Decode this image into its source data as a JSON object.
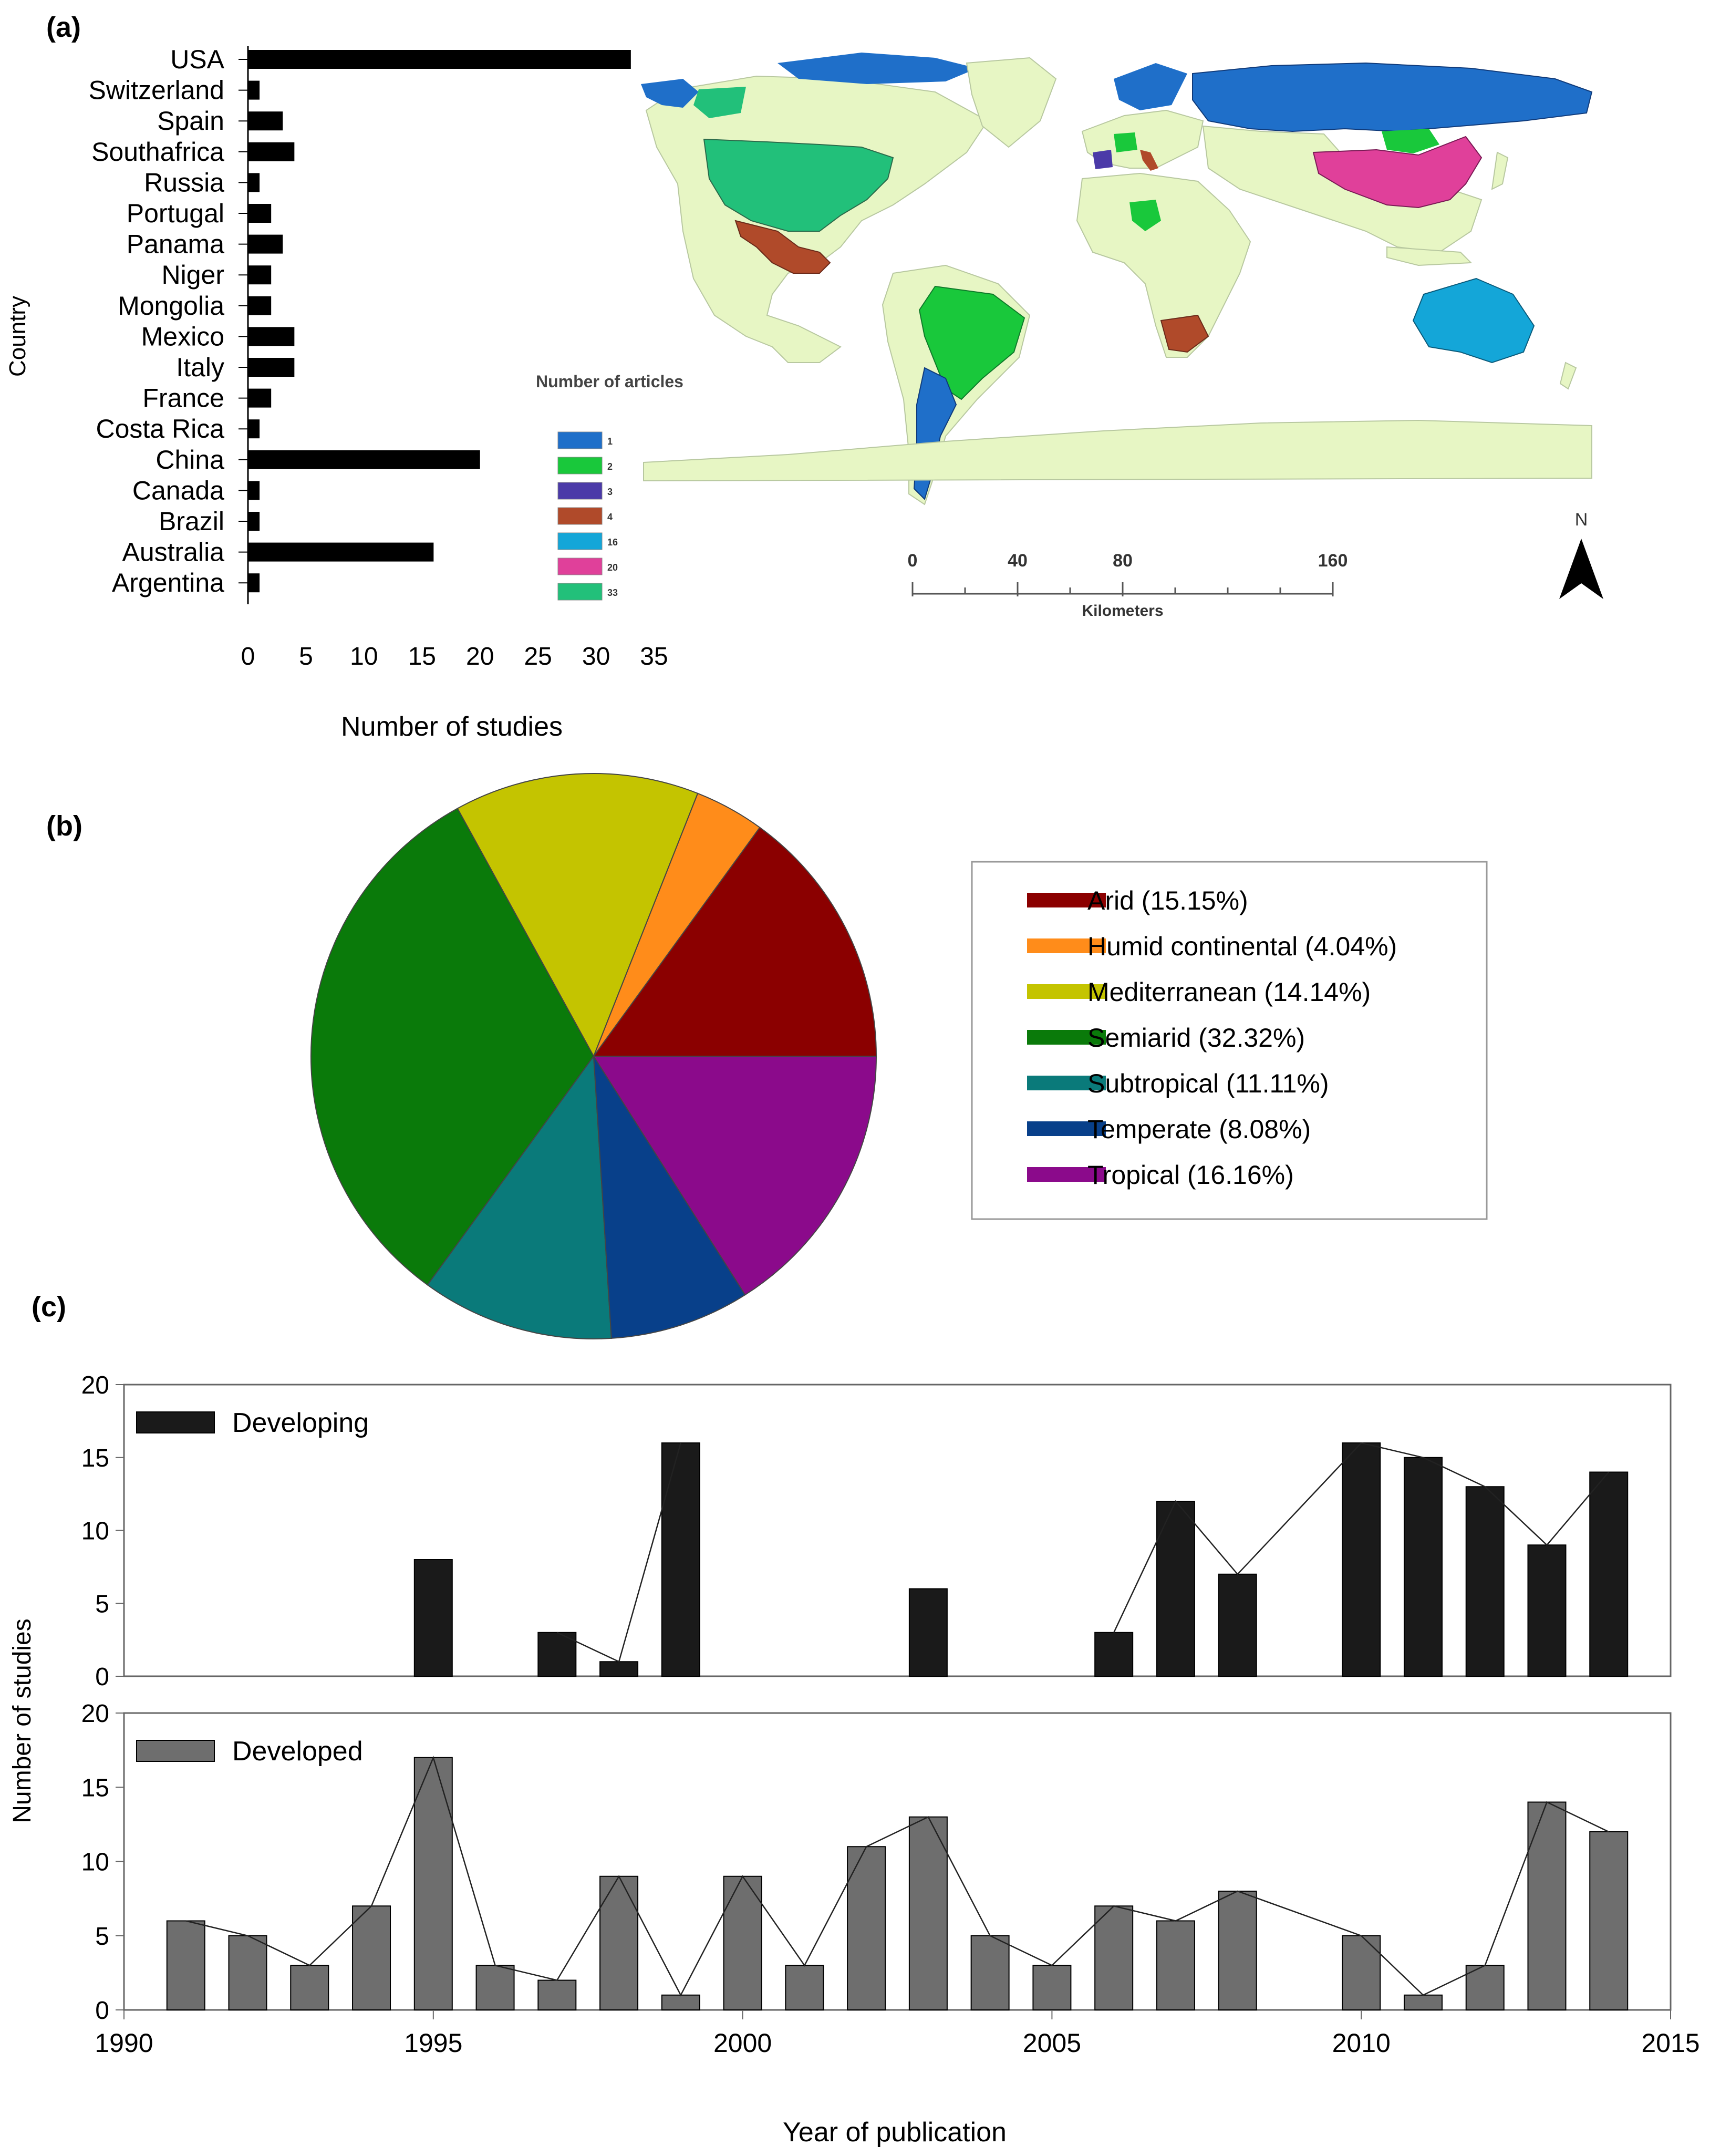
{
  "panel_labels": {
    "a": "(a)",
    "b": "(b)",
    "c": "(c)"
  },
  "map": {
    "legend_title": "Number of articles",
    "legend": [
      {
        "label": "1",
        "color": "#1f6fc9"
      },
      {
        "label": "2",
        "color": "#19c83b"
      },
      {
        "label": "3",
        "color": "#4b3aa8"
      },
      {
        "label": "4",
        "color": "#b04a2a"
      },
      {
        "label": "16",
        "color": "#14a6d8"
      },
      {
        "label": "20",
        "color": "#e0409a"
      },
      {
        "label": "33",
        "color": "#22c07a"
      }
    ],
    "base_color": "#e7f6c4",
    "scale_ticks": [
      "0",
      "40",
      "80",
      "160"
    ],
    "scale_unit": "Kilometers",
    "north_label": "N"
  },
  "chart_data": [
    {
      "type": "bar",
      "orientation": "horizontal",
      "categories": [
        "USA",
        "Switzerland",
        "Spain",
        "Southafrica",
        "Russia",
        "Portugal",
        "Panama",
        "Niger",
        "Mongolia",
        "Mexico",
        "Italy",
        "France",
        "Costa Rica",
        "China",
        "Canada",
        "Brazil",
        "Australia",
        "Argentina"
      ],
      "values": [
        33,
        1,
        3,
        4,
        1,
        2,
        3,
        2,
        2,
        4,
        4,
        2,
        1,
        20,
        1,
        1,
        16,
        1
      ],
      "xlabel": "Number of studies",
      "ylabel": "Country",
      "xlim": [
        0,
        35
      ],
      "xticks": [
        "0",
        "5",
        "10",
        "15",
        "20",
        "25",
        "30",
        "35"
      ],
      "color": "#000000"
    },
    {
      "type": "pie",
      "slices": [
        {
          "label": "Arid (15.15%)",
          "value": 15.15,
          "color": "#8b0000"
        },
        {
          "label": "Humid continental (4.04%)",
          "value": 4.04,
          "color": "#ff8c1a"
        },
        {
          "label": "Mediterranean (14.14%)",
          "value": 14.14,
          "color": "#c4c400"
        },
        {
          "label": "Semiarid (32.32%)",
          "value": 32.32,
          "color": "#0a7a0a"
        },
        {
          "label": "Subtropical (11.11%)",
          "value": 11.11,
          "color": "#0a7a7a"
        },
        {
          "label": "Temperate (8.08%)",
          "value": 8.08,
          "color": "#08408a"
        },
        {
          "label": "Tropical (16.16%)",
          "value": 16.16,
          "color": "#8b0a8b"
        }
      ]
    },
    {
      "type": "bar",
      "series_name": "Developing",
      "color": "#1a1a1a",
      "x": [
        1995,
        1997,
        1998,
        1999,
        2003,
        2006,
        2007,
        2008,
        2010,
        2011,
        2012,
        2013,
        2014
      ],
      "values": [
        8,
        3,
        1,
        16,
        6,
        3,
        12,
        7,
        16,
        15,
        13,
        9,
        14
      ],
      "line_segments": [
        [
          1997,
          1998,
          1999
        ],
        [
          2006,
          2007,
          2008,
          2010,
          2011,
          2012,
          2013,
          2014
        ]
      ],
      "ylim": [
        0,
        20
      ],
      "yticks": [
        "0",
        "5",
        "10",
        "15",
        "20"
      ]
    },
    {
      "type": "bar",
      "series_name": "Developed",
      "color": "#6e6e6e",
      "x": [
        1991,
        1992,
        1993,
        1994,
        1995,
        1996,
        1997,
        1998,
        1999,
        2000,
        2001,
        2002,
        2003,
        2004,
        2005,
        2006,
        2007,
        2008,
        2010,
        2011,
        2012,
        2013,
        2014
      ],
      "values": [
        6,
        5,
        3,
        7,
        17,
        3,
        2,
        9,
        1,
        9,
        3,
        11,
        13,
        5,
        3,
        7,
        6,
        8,
        5,
        1,
        3,
        14,
        12
      ],
      "ylim": [
        0,
        20
      ],
      "yticks": [
        "0",
        "5",
        "10",
        "15",
        "20"
      ],
      "xlim": [
        1990,
        2015
      ],
      "xticks": [
        "1990",
        "1995",
        "2000",
        "2005",
        "2010",
        "2015"
      ],
      "xlabel": "Year of publication",
      "ylabel": "Number of studies"
    }
  ]
}
